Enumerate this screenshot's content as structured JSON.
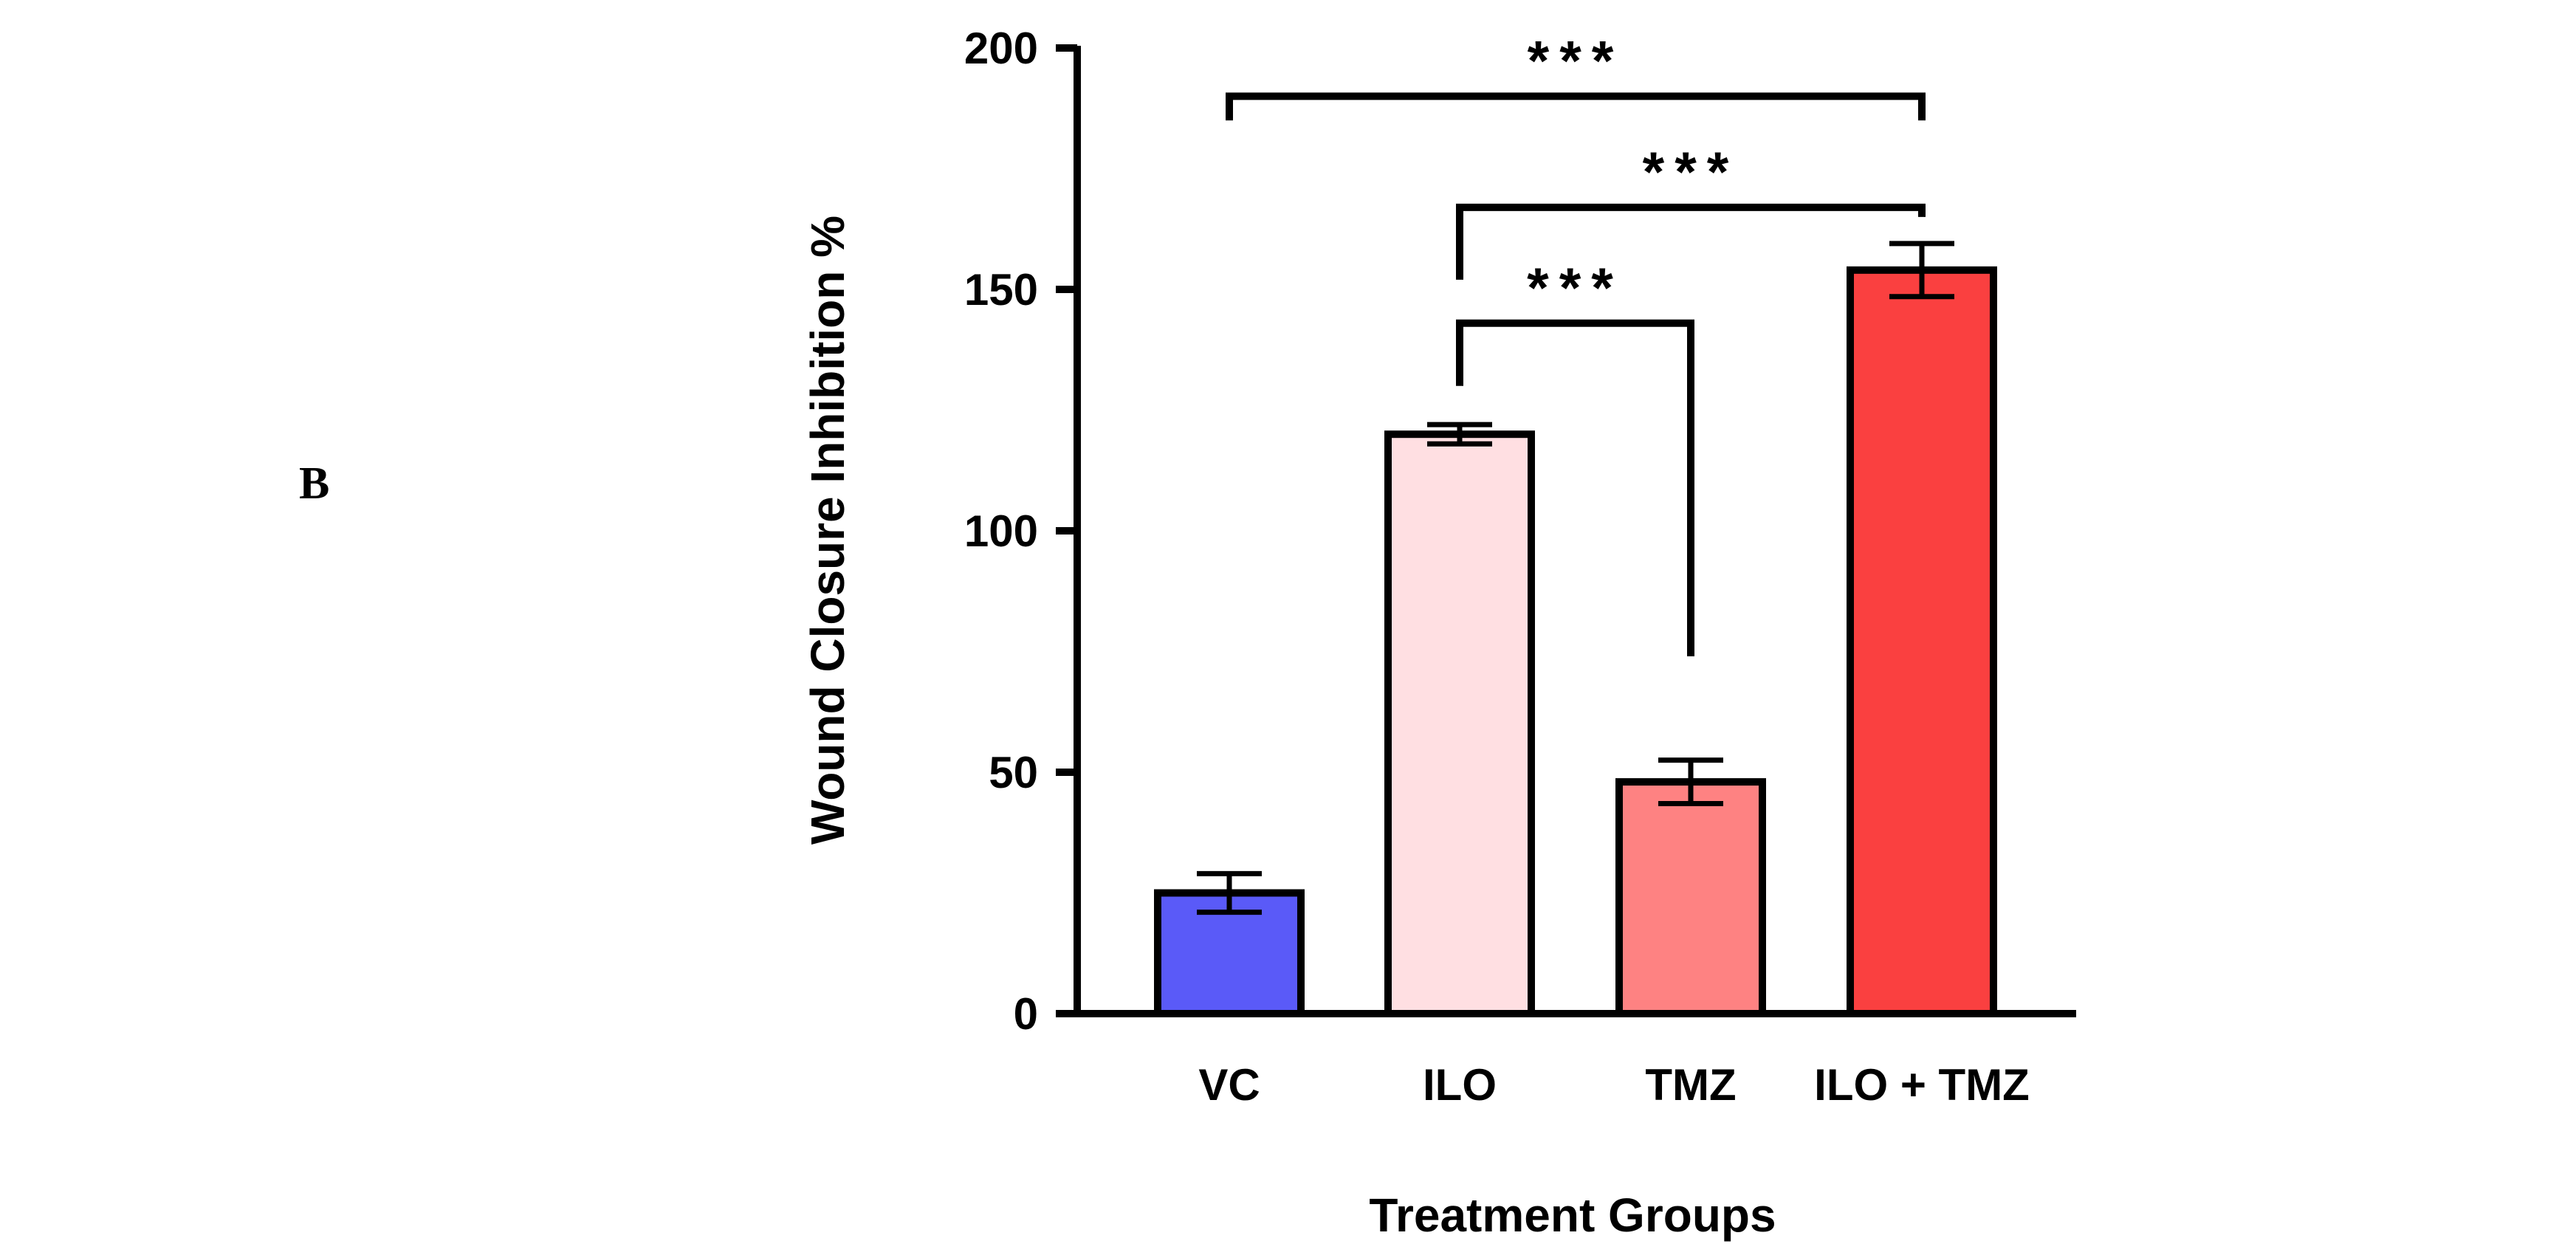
{
  "panel_label": "B",
  "chart_data": {
    "type": "bar",
    "title": "",
    "xlabel": "Treatment Groups",
    "ylabel": "Wound Closure Inhibition %",
    "ylim": [
      0,
      200
    ],
    "yticks": [
      0,
      50,
      100,
      150,
      200
    ],
    "categories": [
      "VC",
      "ILO",
      "TMZ",
      "ILO + TMZ"
    ],
    "values": [
      25,
      120,
      48,
      154
    ],
    "errors": [
      4,
      2,
      4.5,
      5.5
    ],
    "bar_colors": [
      "#5a5af8",
      "#ffdfe2",
      "#fe8282",
      "#fa4040"
    ],
    "edge_color": "#000000",
    "significance": [
      {
        "from": 0,
        "to": 3,
        "label": "***",
        "bracket_y": 190,
        "left_y": 185,
        "right_y": 185
      },
      {
        "from": 1,
        "to": 3,
        "label": "***",
        "bracket_y": 167,
        "left_y": 152,
        "right_y": 165
      },
      {
        "from": 1,
        "to": 2,
        "label": "***",
        "bracket_y": 143,
        "left_y": 130,
        "right_y": 74
      }
    ]
  }
}
